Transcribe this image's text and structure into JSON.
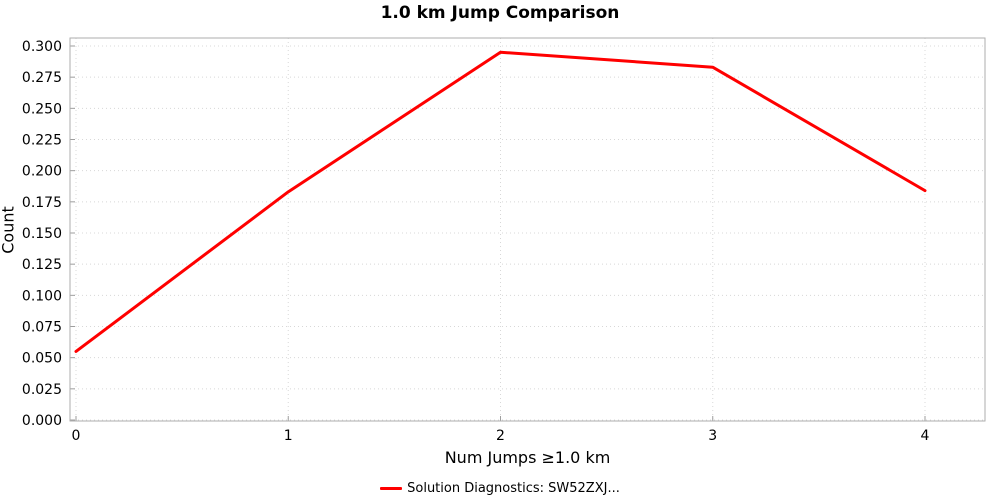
{
  "chart_data": {
    "type": "line",
    "title": "1.0 km Jump Comparison",
    "xlabel": "Num Jumps ≥1.0 km",
    "ylabel": "Count",
    "x": [
      0,
      1,
      2,
      3,
      4
    ],
    "series": [
      {
        "name": "Solution Diagnostics: SW52ZXJ...",
        "color": "#ff0000",
        "values": [
          0.055,
          0.183,
          0.295,
          0.283,
          0.184
        ]
      }
    ],
    "xlim": [
      0,
      4
    ],
    "ylim": [
      0,
      0.3
    ],
    "xticks": [
      "0",
      "1",
      "2",
      "3",
      "4"
    ],
    "yticks": [
      "0.000",
      "0.025",
      "0.050",
      "0.075",
      "0.100",
      "0.125",
      "0.150",
      "0.175",
      "0.200",
      "0.225",
      "0.250",
      "0.275",
      "0.300"
    ],
    "grid": true,
    "legend_position": "bottom"
  }
}
